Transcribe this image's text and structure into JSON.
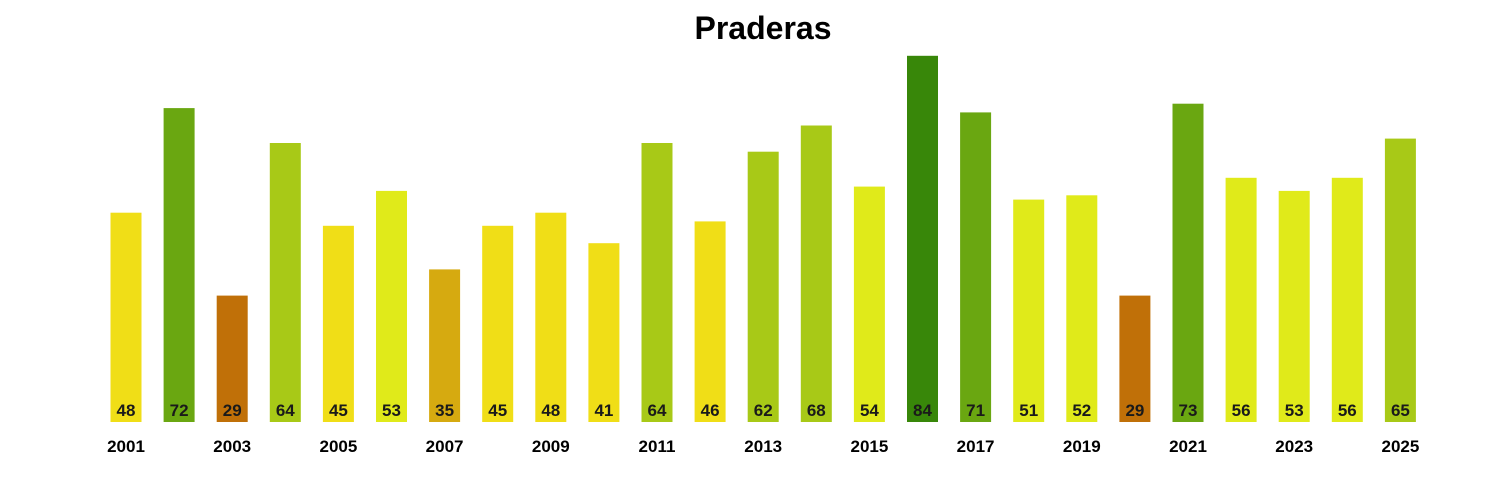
{
  "chart_data": {
    "type": "bar",
    "title": "Praderas",
    "categories": [
      "2001",
      "2002",
      "2003",
      "2004",
      "2005",
      "2006",
      "2007",
      "2008",
      "2009",
      "2010",
      "2011",
      "2012",
      "2013",
      "2014",
      "2015",
      "2016",
      "2017",
      "2018",
      "2019",
      "2020",
      "2021",
      "2022",
      "2023",
      "2024",
      "2025"
    ],
    "values": [
      48,
      72,
      29,
      64,
      45,
      53,
      35,
      45,
      48,
      41,
      64,
      46,
      62,
      68,
      54,
      84,
      71,
      51,
      52,
      29,
      73,
      56,
      53,
      56,
      65
    ],
    "tick_labels": [
      "2001",
      "2003",
      "2005",
      "2007",
      "2009",
      "2011",
      "2013",
      "2015",
      "2017",
      "2019",
      "2021",
      "2023",
      "2025"
    ],
    "colors": [
      "#f0de17",
      "#6aa711",
      "#c07008",
      "#a8c917",
      "#f0de17",
      "#e0ea1a",
      "#d6aa10",
      "#f0de17",
      "#f0de17",
      "#f0de17",
      "#a8c917",
      "#f0de17",
      "#a8c917",
      "#a8c917",
      "#e0ea1a",
      "#388709",
      "#6aa711",
      "#e0ea1a",
      "#e0ea1a",
      "#c07008",
      "#6aa711",
      "#e0ea1a",
      "#e0ea1a",
      "#e0ea1a",
      "#a8c917"
    ],
    "xlabel": "",
    "ylabel": "",
    "ylim": [
      0,
      84
    ],
    "grid": false,
    "legend": "none"
  }
}
